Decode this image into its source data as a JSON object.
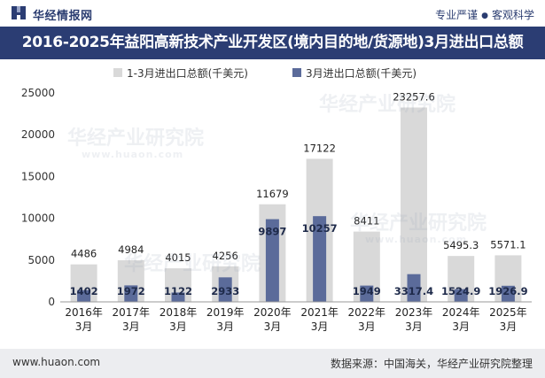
{
  "header": {
    "brand": "华经情报网",
    "slogan_left": "专业严谨",
    "slogan_right": "客观科学"
  },
  "title": "2016-2025年益阳高新技术产业开发区(境内目的地/货源地)3月进出口总额",
  "watermark": {
    "text": "华经产业研究院",
    "url": "www.huaon.com"
  },
  "footer": {
    "url": "www.huaon.com",
    "source": "数据来源：中国海关，华经产业研究院整理"
  },
  "colors": {
    "header_bg": "#2b3d73",
    "series1": "#d9d9d9",
    "series2": "#5b6b9a",
    "footer_bg": "#ecedf0"
  },
  "chart_data": {
    "type": "bar",
    "categories": [
      "2016年3月",
      "2017年3月",
      "2018年3月",
      "2019年3月",
      "2020年3月",
      "2021年3月",
      "2022年3月",
      "2023年3月",
      "2024年3月",
      "2025年3月"
    ],
    "series": [
      {
        "name": "1-3月进出口总额(千美元)",
        "values": [
          4486,
          4984,
          4015,
          4256,
          11679,
          17122,
          8411,
          23257.6,
          5495.3,
          5571.1
        ],
        "labels": [
          "4486",
          "4984",
          "4015",
          "4256",
          "11679",
          "17122",
          "8411",
          "23257.6",
          "5495.3",
          "5571.1"
        ],
        "color": "#d9d9d9"
      },
      {
        "name": "3月进出口总额(千美元)",
        "values": [
          1402,
          1972,
          1122,
          2933,
          9897,
          10257,
          1949,
          3317.4,
          1524.9,
          1926.9
        ],
        "labels": [
          "1402",
          "1972",
          "1122",
          "2933",
          "9897",
          "10257",
          "1949",
          "3317.4",
          "1524.9",
          "1926.9"
        ],
        "color": "#5b6b9a"
      }
    ],
    "ylim": [
      0,
      25000
    ],
    "yticks": [
      0,
      5000,
      10000,
      15000,
      20000,
      25000
    ],
    "legend": "top-center",
    "grid": false
  }
}
